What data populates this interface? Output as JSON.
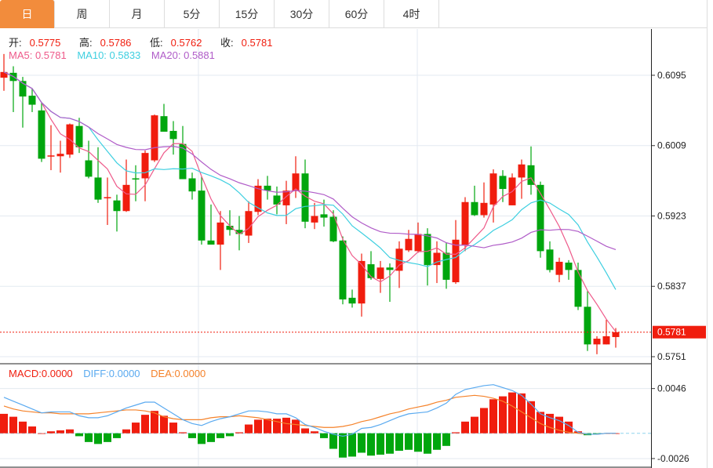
{
  "tabs": [
    {
      "label": "日",
      "active": true
    },
    {
      "label": "周"
    },
    {
      "label": "月"
    },
    {
      "label": "5分"
    },
    {
      "label": "15分"
    },
    {
      "label": "30分"
    },
    {
      "label": "60分"
    },
    {
      "label": "4时"
    }
  ],
  "ohlc_legend": {
    "open_label": "开:",
    "open": "0.5775",
    "high_label": "高:",
    "high": "0.5786",
    "low_label": "低:",
    "low": "0.5762",
    "close_label": "收:",
    "close": "0.5781"
  },
  "ma_legend": {
    "ma5": "MA5: 0.5781",
    "ma10": "MA10: 0.5833",
    "ma20": "MA20: 0.5881"
  },
  "macd_legend": {
    "macd": "MACD:0.0000",
    "diff": "DIFF:0.0000",
    "dea": "DEA:0.0000"
  },
  "colors": {
    "up": "#f01d0e",
    "down": "#00a60e",
    "ma5": "#ee5a8a",
    "ma10": "#3ecfe0",
    "ma20": "#b05cc8",
    "diff": "#5aaaf0",
    "dea": "#f5822a",
    "accent": "#f28c3c"
  },
  "chart_data": [
    {
      "type": "candlestick",
      "title": "",
      "y_ticks": [
        "0.6095",
        "0.6009",
        "0.5923",
        "0.5837",
        "0.5751"
      ],
      "ylim": [
        0.573,
        0.6149
      ],
      "current_price": "0.5781",
      "candles_ohlc": [
        [
          0.6092,
          0.6121,
          0.6076,
          0.6099
        ],
        [
          0.6098,
          0.6106,
          0.605,
          0.6088
        ],
        [
          0.6088,
          0.6093,
          0.6031,
          0.6069
        ],
        [
          0.607,
          0.6079,
          0.605,
          0.6059
        ],
        [
          0.6052,
          0.6061,
          0.5989,
          0.5993
        ],
        [
          0.5996,
          0.6034,
          0.5979,
          0.5997
        ],
        [
          0.5996,
          0.6015,
          0.5976,
          0.5999
        ],
        [
          0.5998,
          0.6036,
          0.5994,
          0.6035
        ],
        [
          0.6033,
          0.6043,
          0.6,
          0.6007
        ],
        [
          0.5991,
          0.6015,
          0.5969,
          0.5971
        ],
        [
          0.597,
          0.6007,
          0.5939,
          0.5943
        ],
        [
          0.5945,
          0.597,
          0.5912,
          0.5946
        ],
        [
          0.5942,
          0.5949,
          0.5904,
          0.5929
        ],
        [
          0.5929,
          0.5992,
          0.5928,
          0.5961
        ],
        [
          0.5969,
          0.5985,
          0.5941,
          0.5968
        ],
        [
          0.5969,
          0.6003,
          0.5941,
          0.6
        ],
        [
          0.5991,
          0.6047,
          0.5989,
          0.6046
        ],
        [
          0.6045,
          0.606,
          0.6026,
          0.6026
        ],
        [
          0.6027,
          0.6039,
          0.5998,
          0.6017
        ],
        [
          0.6011,
          0.6033,
          0.5968,
          0.5968
        ],
        [
          0.5969,
          0.5976,
          0.5943,
          0.5953
        ],
        [
          0.5954,
          0.5971,
          0.5888,
          0.5893
        ],
        [
          0.5893,
          0.5937,
          0.5888,
          0.5888
        ],
        [
          0.5888,
          0.5929,
          0.5857,
          0.5915
        ],
        [
          0.5911,
          0.593,
          0.5899,
          0.5906
        ],
        [
          0.5906,
          0.5923,
          0.5881,
          0.5901
        ],
        [
          0.5899,
          0.5941,
          0.589,
          0.5929
        ],
        [
          0.5928,
          0.5968,
          0.5924,
          0.596
        ],
        [
          0.596,
          0.5972,
          0.5943,
          0.5954
        ],
        [
          0.5948,
          0.5959,
          0.5925,
          0.5937
        ],
        [
          0.5936,
          0.5966,
          0.5913,
          0.5954
        ],
        [
          0.5954,
          0.5996,
          0.5945,
          0.5975
        ],
        [
          0.5975,
          0.5992,
          0.5908,
          0.5916
        ],
        [
          0.5915,
          0.5939,
          0.5907,
          0.5923
        ],
        [
          0.5925,
          0.5943,
          0.591,
          0.5921
        ],
        [
          0.5922,
          0.593,
          0.5891,
          0.5892
        ],
        [
          0.5893,
          0.5898,
          0.5815,
          0.5821
        ],
        [
          0.5823,
          0.5833,
          0.5811,
          0.5816
        ],
        [
          0.5816,
          0.5877,
          0.58,
          0.5868
        ],
        [
          0.5864,
          0.588,
          0.5845,
          0.5847
        ],
        [
          0.5846,
          0.5868,
          0.5829,
          0.586
        ],
        [
          0.586,
          0.5865,
          0.5818,
          0.5857
        ],
        [
          0.5856,
          0.5892,
          0.5835,
          0.5883
        ],
        [
          0.5881,
          0.5906,
          0.5879,
          0.5895
        ],
        [
          0.588,
          0.5915,
          0.5878,
          0.5901
        ],
        [
          0.5901,
          0.5908,
          0.5838,
          0.5863
        ],
        [
          0.5863,
          0.5892,
          0.5841,
          0.5878
        ],
        [
          0.5878,
          0.589,
          0.5834,
          0.5845
        ],
        [
          0.5842,
          0.5918,
          0.584,
          0.5894
        ],
        [
          0.5887,
          0.5946,
          0.588,
          0.594
        ],
        [
          0.594,
          0.596,
          0.5923,
          0.5924
        ],
        [
          0.5924,
          0.5964,
          0.5921,
          0.5939
        ],
        [
          0.5937,
          0.598,
          0.5915,
          0.5975
        ],
        [
          0.5972,
          0.5979,
          0.594,
          0.5956
        ],
        [
          0.5936,
          0.5975,
          0.5936,
          0.597
        ],
        [
          0.597,
          0.5992,
          0.5944,
          0.5986
        ],
        [
          0.5985,
          0.6008,
          0.5949,
          0.5961
        ],
        [
          0.5961,
          0.5965,
          0.5872,
          0.588
        ],
        [
          0.5882,
          0.5892,
          0.5854,
          0.5857
        ],
        [
          0.5851,
          0.5872,
          0.5842,
          0.5867
        ],
        [
          0.5866,
          0.5869,
          0.5845,
          0.5857
        ],
        [
          0.5857,
          0.5866,
          0.5808,
          0.5812
        ],
        [
          0.5812,
          0.5831,
          0.5758,
          0.5766
        ],
        [
          0.5766,
          0.5776,
          0.5754,
          0.5773
        ],
        [
          0.5766,
          0.5796,
          0.5766,
          0.5776
        ],
        [
          0.5775,
          0.5786,
          0.5762,
          0.5781
        ]
      ]
    },
    {
      "type": "bar+line",
      "title": "MACD",
      "y_ticks": [
        "0.0046",
        "-0.0026"
      ],
      "ylim": [
        -0.0034,
        0.0069
      ],
      "macd_hist": [
        0.002,
        0.0017,
        0.0012,
        0.0007,
        0.0,
        0.0002,
        0.0003,
        0.0004,
        -0.0003,
        -0.0009,
        -0.0011,
        -0.0009,
        -0.0005,
        0.0004,
        0.0011,
        0.0019,
        0.0023,
        0.0018,
        0.0011,
        0.0001,
        -0.0005,
        -0.0011,
        -0.0009,
        -0.0005,
        -0.0003,
        0.0001,
        0.0009,
        0.0014,
        0.0015,
        0.0015,
        0.0016,
        0.0014,
        0.0005,
        0.0002,
        -0.0005,
        -0.0016,
        -0.0025,
        -0.0024,
        -0.002,
        -0.0023,
        -0.0022,
        -0.0021,
        -0.0018,
        -0.0017,
        -0.0019,
        -0.0021,
        -0.0017,
        -0.0013,
        0.0001,
        0.0012,
        0.0017,
        0.0026,
        0.0035,
        0.0038,
        0.0042,
        0.0041,
        0.0033,
        0.0022,
        0.002,
        0.0017,
        0.0012,
        0.0002,
        -0.0002,
        -0.0001,
        0.0,
        0.0
      ],
      "diff": [
        0.0037,
        0.0033,
        0.0029,
        0.0025,
        0.0021,
        0.0022,
        0.0022,
        0.0022,
        0.0018,
        0.0016,
        0.0016,
        0.0018,
        0.0022,
        0.0026,
        0.0029,
        0.0032,
        0.0032,
        0.0026,
        0.002,
        0.0014,
        0.001,
        0.0008,
        0.0012,
        0.0015,
        0.0017,
        0.002,
        0.0023,
        0.0023,
        0.0022,
        0.002,
        0.002,
        0.0016,
        0.0009,
        0.0006,
        0.0002,
        -0.0001,
        -0.0003,
        -0.0001,
        0.0005,
        0.0006,
        0.0009,
        0.0013,
        0.0017,
        0.002,
        0.0021,
        0.0022,
        0.0026,
        0.0031,
        0.004,
        0.0045,
        0.0047,
        0.0049,
        0.005,
        0.0047,
        0.0044,
        0.0039,
        0.003,
        0.002,
        0.0016,
        0.0013,
        0.0008,
        0.0001,
        -0.0001,
        -0.0001,
        0.0,
        0.0
      ],
      "dea": [
        0.0028,
        0.0025,
        0.0023,
        0.0022,
        0.0021,
        0.0021,
        0.002,
        0.002,
        0.002,
        0.002,
        0.0021,
        0.0022,
        0.0023,
        0.0024,
        0.0024,
        0.0023,
        0.0021,
        0.0017,
        0.0015,
        0.0014,
        0.0014,
        0.0014,
        0.0016,
        0.0017,
        0.0017,
        0.0018,
        0.0017,
        0.0016,
        0.0014,
        0.0012,
        0.001,
        0.0009,
        0.0008,
        0.0007,
        0.0006,
        0.0006,
        0.0007,
        0.0009,
        0.0012,
        0.0014,
        0.0017,
        0.002,
        0.0022,
        0.0025,
        0.0027,
        0.0029,
        0.0032,
        0.0034,
        0.0037,
        0.0038,
        0.0039,
        0.0038,
        0.0036,
        0.0033,
        0.0028,
        0.0022,
        0.0016,
        0.001,
        0.0006,
        0.0003,
        0.0001,
        0.0,
        -0.0001,
        -0.0001,
        0.0,
        0.0
      ]
    }
  ]
}
